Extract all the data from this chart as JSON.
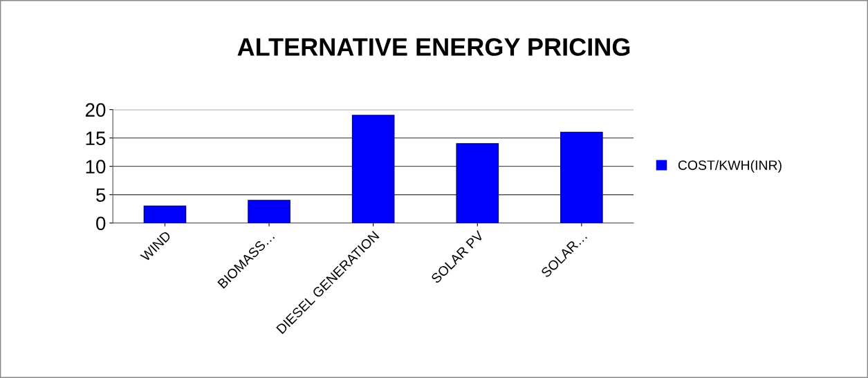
{
  "chart_data": {
    "type": "bar",
    "title": "ALTERNATIVE ENERGY PRICING",
    "categories": [
      "WIND",
      "BIOMASS…",
      "DIESEL GENERATION",
      "SOLAR PV",
      "SOLAR…"
    ],
    "series": [
      {
        "name": "COST/KWH(INR)",
        "color": "#0000ff",
        "values": [
          3,
          4,
          19,
          14,
          16
        ]
      }
    ],
    "ylim": [
      0,
      20
    ],
    "yticks": [
      0,
      5,
      10,
      15,
      20
    ],
    "grid": "y",
    "legend": "right"
  }
}
